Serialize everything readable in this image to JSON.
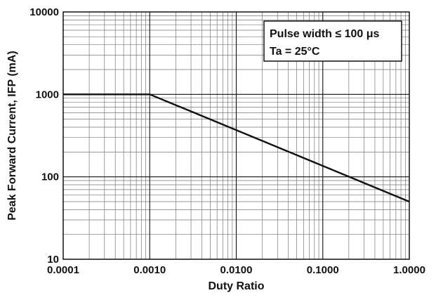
{
  "chart_data": {
    "type": "line",
    "title": "",
    "xlabel": "Duty Ratio",
    "ylabel": "Peak Forward Current, IFP (mA)",
    "xscale": "log",
    "yscale": "log",
    "xlim": [
      0.0001,
      1
    ],
    "ylim": [
      10,
      10000
    ],
    "grid": true,
    "x_ticks": [
      "0.0001",
      "0.0010",
      "0.0100",
      "0.1000",
      "1.0000"
    ],
    "y_ticks": [
      "10",
      "100",
      "1000",
      "10000"
    ],
    "annotation": [
      "Pulse width ≤ 100 μs",
      "Ta = 25°C"
    ],
    "annotation_position": "top-right",
    "series": [
      {
        "x": [
          0.0001,
          0.001,
          1
        ],
        "y": [
          1000,
          1000,
          50
        ],
        "color": "#111111"
      }
    ]
  }
}
